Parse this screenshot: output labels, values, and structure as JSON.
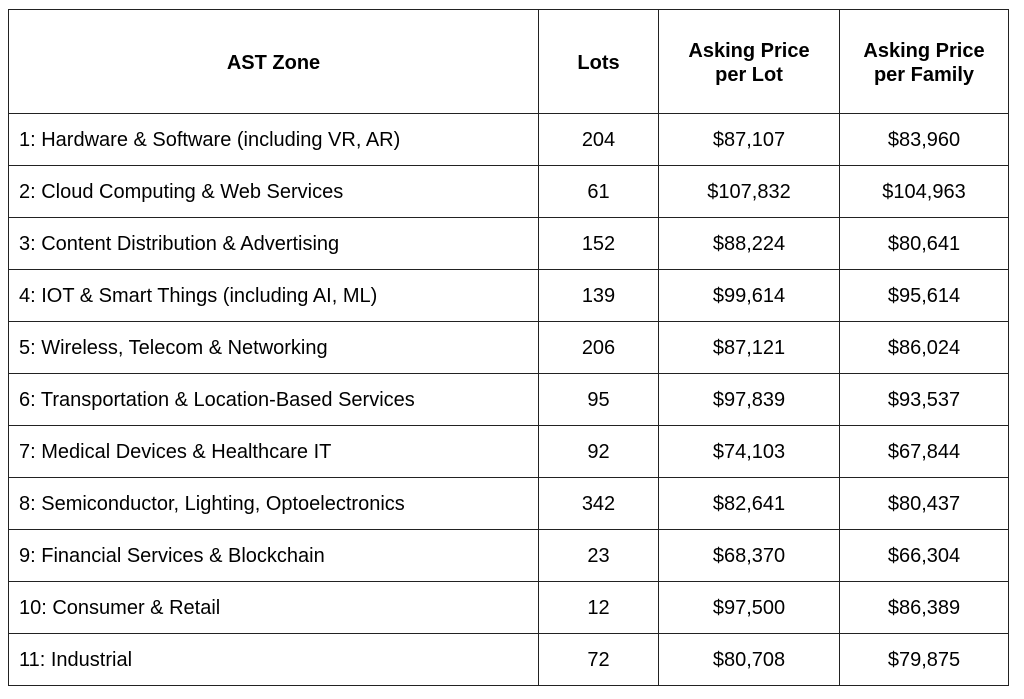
{
  "table": {
    "headers": {
      "zone": "AST Zone",
      "lots": "Lots",
      "price_per_lot_line1": "Asking Price",
      "price_per_lot_line2": "per Lot",
      "price_per_family_line1": "Asking Price",
      "price_per_family_line2": "per Family"
    },
    "rows": [
      {
        "zone": "1: Hardware & Software (including VR, AR)",
        "lots": "204",
        "price_per_lot": "$87,107",
        "price_per_family": "$83,960"
      },
      {
        "zone": "2: Cloud Computing & Web Services",
        "lots": "61",
        "price_per_lot": "$107,832",
        "price_per_family": "$104,963"
      },
      {
        "zone": "3: Content Distribution & Advertising",
        "lots": "152",
        "price_per_lot": "$88,224",
        "price_per_family": "$80,641"
      },
      {
        "zone": "4: IOT & Smart Things (including AI, ML)",
        "lots": "139",
        "price_per_lot": "$99,614",
        "price_per_family": "$95,614"
      },
      {
        "zone": "5: Wireless, Telecom & Networking",
        "lots": "206",
        "price_per_lot": "$87,121",
        "price_per_family": "$86,024"
      },
      {
        "zone": "6: Transportation & Location-Based Services",
        "lots": "95",
        "price_per_lot": "$97,839",
        "price_per_family": "$93,537"
      },
      {
        "zone": "7: Medical Devices & Healthcare IT",
        "lots": "92",
        "price_per_lot": "$74,103",
        "price_per_family": "$67,844"
      },
      {
        "zone": "8: Semiconductor, Lighting, Optoelectronics",
        "lots": "342",
        "price_per_lot": "$82,641",
        "price_per_family": "$80,437"
      },
      {
        "zone": "9: Financial Services & Blockchain",
        "lots": "23",
        "price_per_lot": "$68,370",
        "price_per_family": "$66,304"
      },
      {
        "zone": "10: Consumer & Retail",
        "lots": "12",
        "price_per_lot": "$97,500",
        "price_per_family": "$86,389"
      },
      {
        "zone": "11: Industrial",
        "lots": "72",
        "price_per_lot": "$80,708",
        "price_per_family": "$79,875"
      }
    ]
  }
}
